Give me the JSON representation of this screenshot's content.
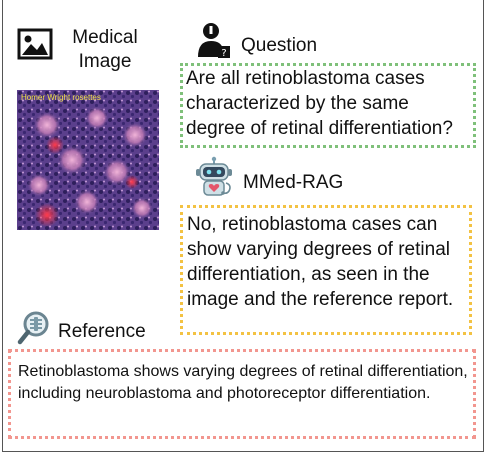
{
  "labels": {
    "medical_image": "Medical\nImage",
    "question": "Question",
    "answer_model": "MMed-RAG",
    "reference": "Reference"
  },
  "question_text": "Are all retinoblastoma cases characterized by the same degree of retinal differentiation?",
  "answer_text": "No, retinoblastoma cases can show varying degrees of retinal differentiation, as seen in the image and the reference report.",
  "reference_text": "Retinoblastoma shows varying degrees of retinal differentiation, including neuroblastoma and photoreceptor differentiation.",
  "image_caption": "Homer Wright rosettes",
  "icons": [
    "image-icon",
    "doctor-question-icon",
    "robot-icon",
    "magnifier-icon"
  ],
  "colors": {
    "question_border": "#7fc07a",
    "answer_border": "#f3c243",
    "reference_border": "#f2968f"
  }
}
